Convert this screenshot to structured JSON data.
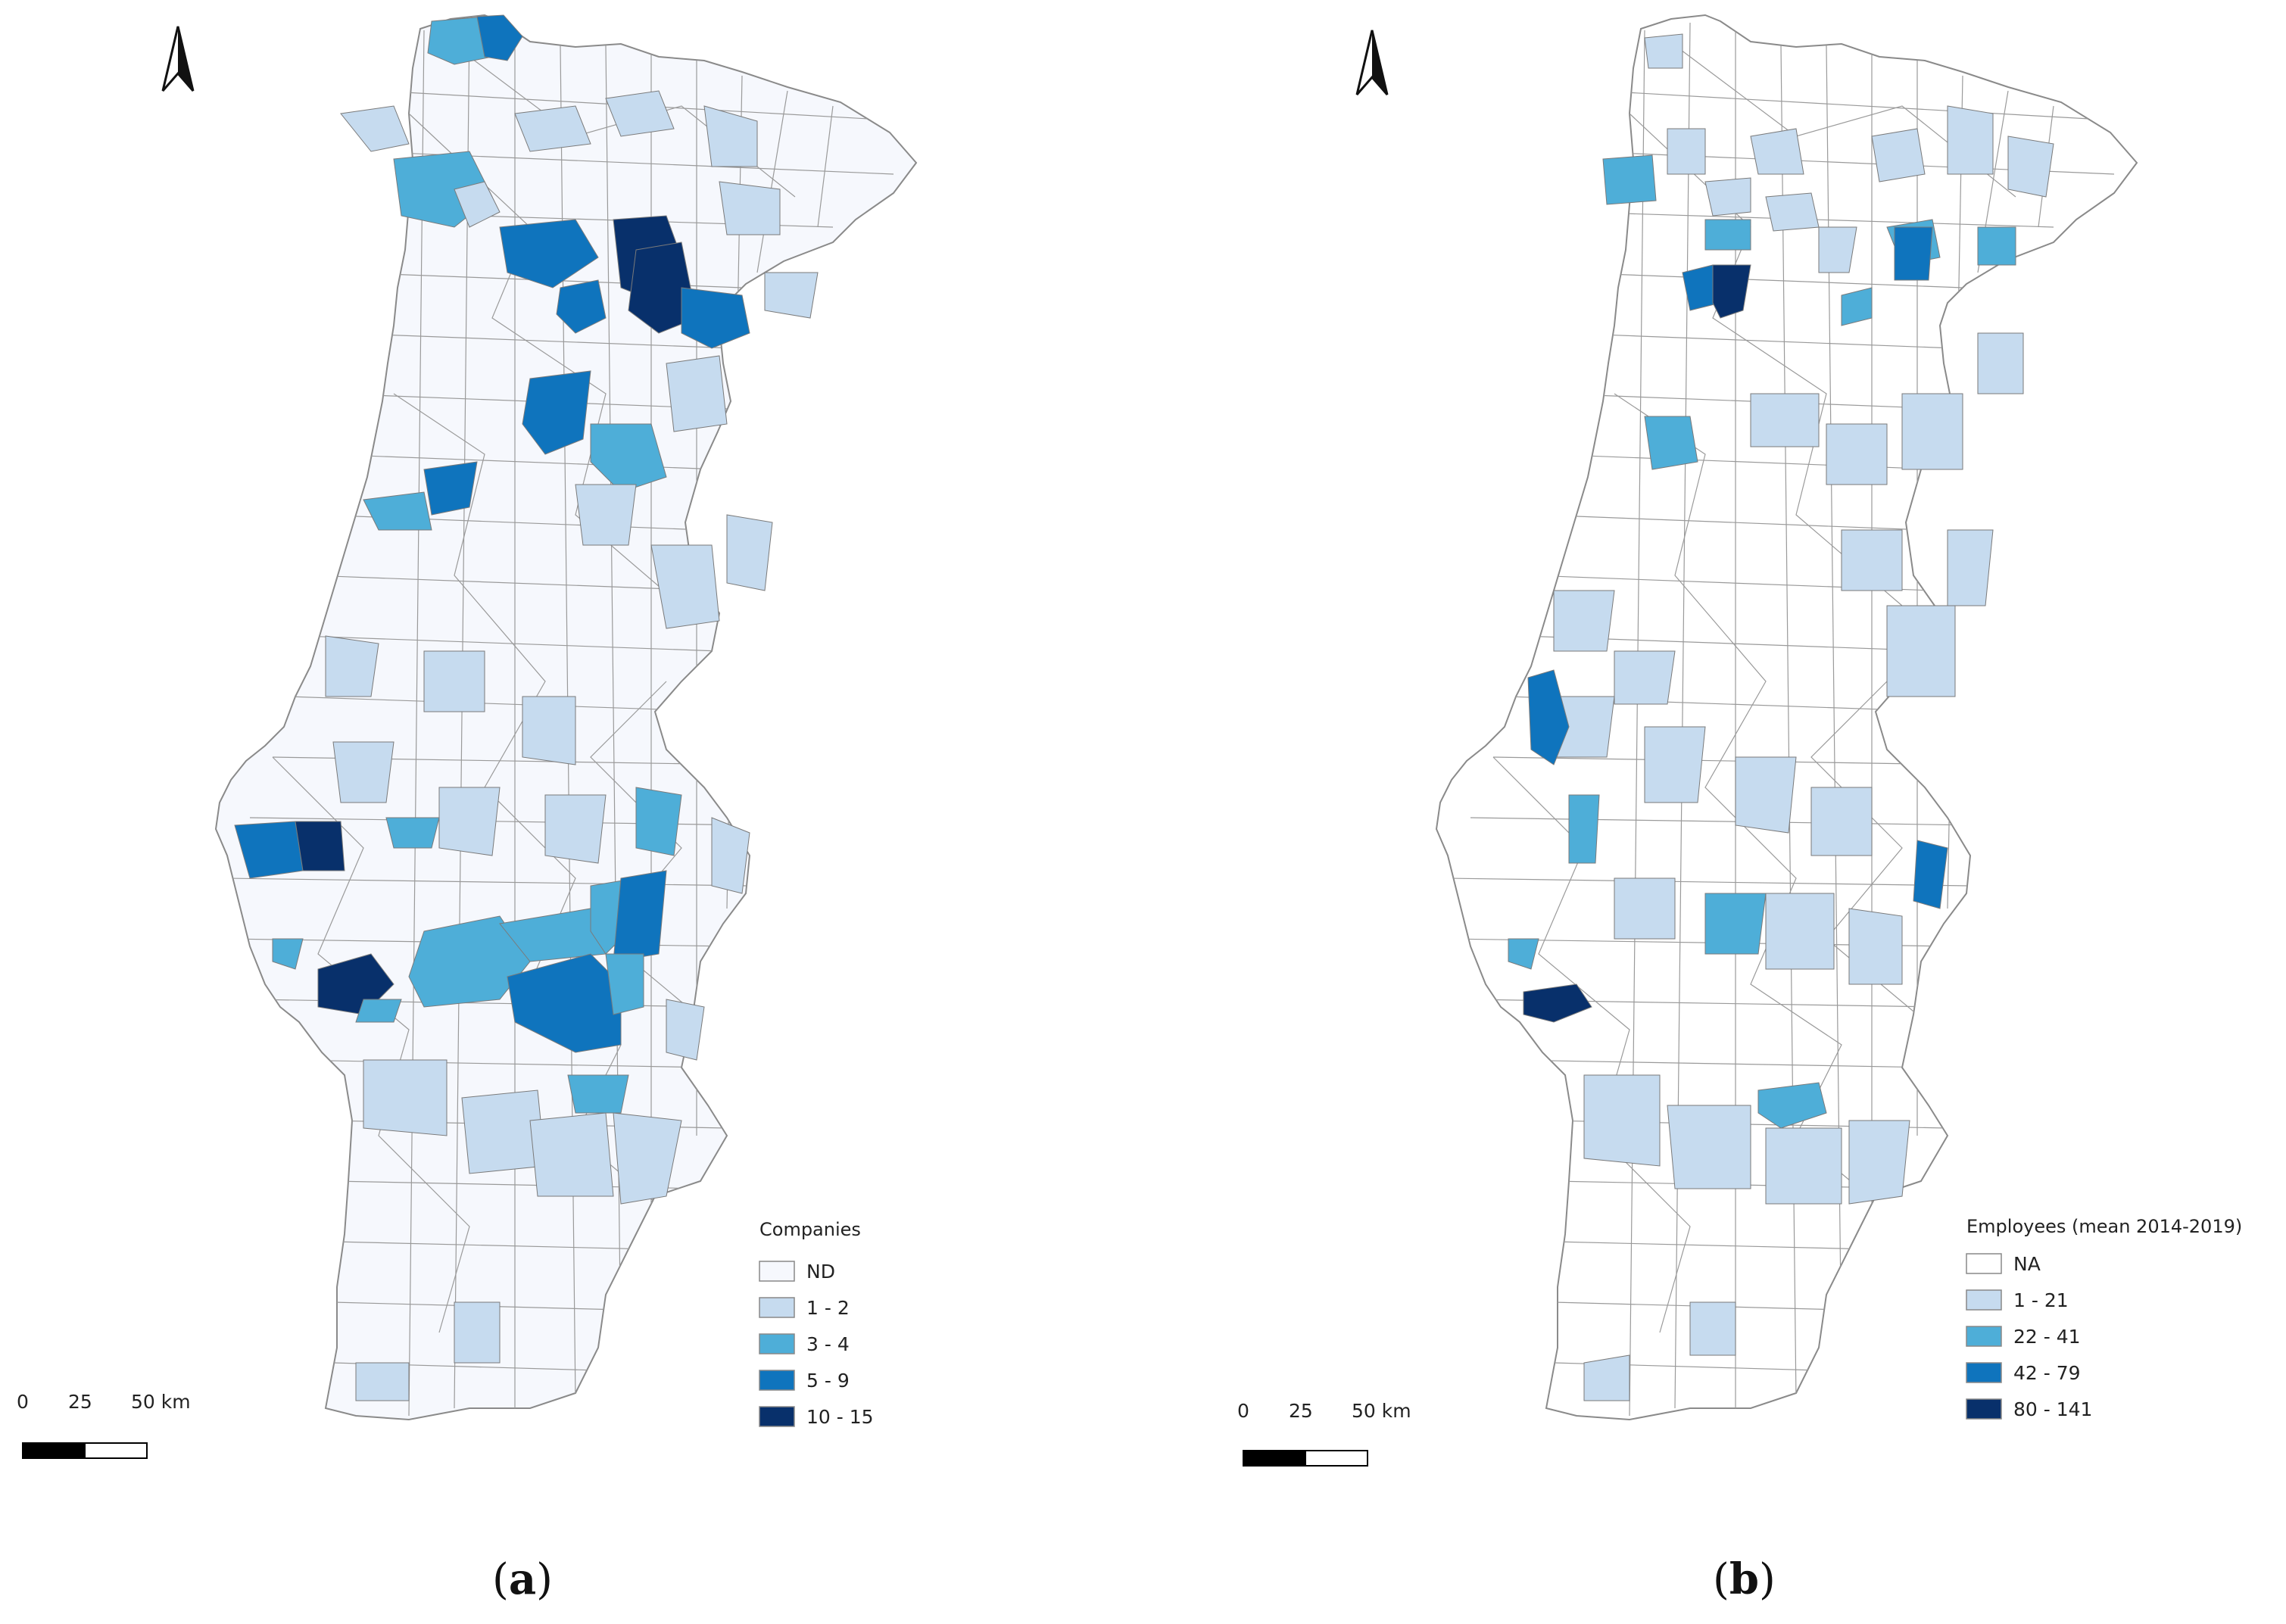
{
  "panels": [
    {
      "id": "a",
      "panel_label": "a",
      "legend": {
        "title": "Companies",
        "classes": [
          {
            "label": "ND",
            "color": "#f6f8fd"
          },
          {
            "label": "1 - 2",
            "color": "#c6dbef"
          },
          {
            "label": "3 - 4",
            "color": "#4eaed8"
          },
          {
            "label": "5 - 9",
            "color": "#0f74bd"
          },
          {
            "label": "10 - 15",
            "color": "#08306b"
          }
        ]
      },
      "scale_bar": {
        "labels": [
          "0",
          "25",
          "50 km"
        ]
      },
      "north_arrow": "north-arrow-icon"
    },
    {
      "id": "b",
      "panel_label": "b",
      "legend": {
        "title": "Employees (mean 2014-2019)",
        "classes": [
          {
            "label": "NA",
            "color": "#ffffff"
          },
          {
            "label": "1 - 21",
            "color": "#c6dbef"
          },
          {
            "label": "22 - 41",
            "color": "#4eaed8"
          },
          {
            "label": "42 - 79",
            "color": "#0f74bd"
          },
          {
            "label": "80 - 141",
            "color": "#08306b"
          }
        ]
      },
      "scale_bar": {
        "labels": [
          "0",
          "25",
          "50 km"
        ]
      },
      "north_arrow": "north-arrow-icon"
    }
  ],
  "colors": {
    "boundary": "#9a9a9a",
    "outline": "#8a8a8a"
  }
}
